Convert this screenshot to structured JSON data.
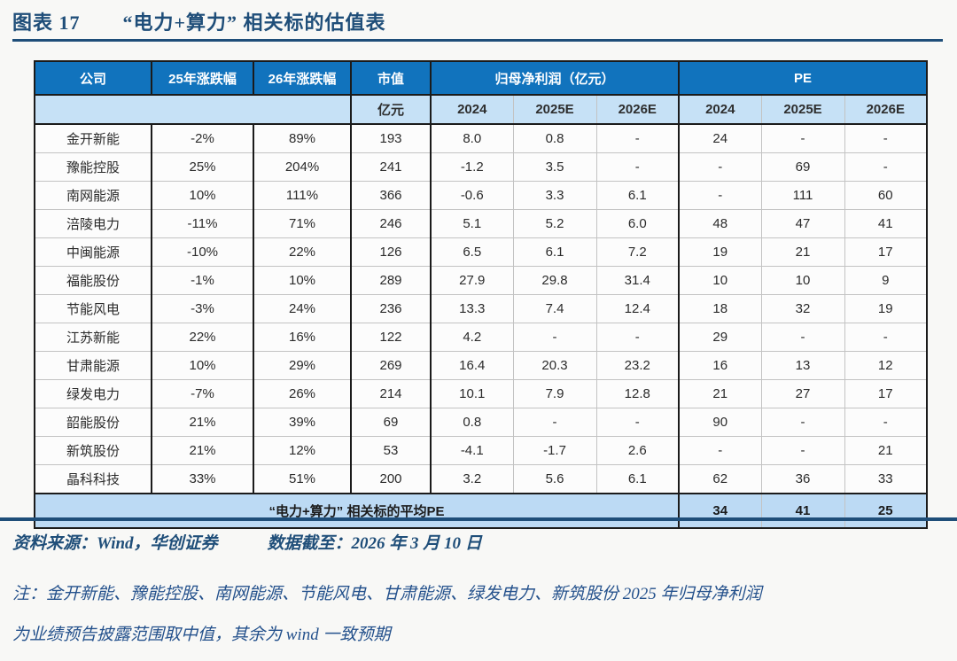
{
  "figure": {
    "label": "图表 17",
    "title": "“电力+算力” 相关标的估值表"
  },
  "table": {
    "columns_row1": [
      "公司",
      "25年涨跌幅",
      "26年涨跌幅",
      "市值",
      "归母净利润（亿元）",
      "PE"
    ],
    "columns_row2": [
      "亿元",
      "2024",
      "2025E",
      "2026E",
      "2024",
      "2025E",
      "2026E"
    ],
    "rows": [
      [
        "金开新能",
        "-2%",
        "89%",
        "193",
        "8.0",
        "0.8",
        "-",
        "24",
        "-",
        "-"
      ],
      [
        "豫能控股",
        "25%",
        "204%",
        "241",
        "-1.2",
        "3.5",
        "-",
        "-",
        "69",
        "-"
      ],
      [
        "南网能源",
        "10%",
        "111%",
        "366",
        "-0.6",
        "3.3",
        "6.1",
        "-",
        "111",
        "60"
      ],
      [
        "涪陵电力",
        "-11%",
        "71%",
        "246",
        "5.1",
        "5.2",
        "6.0",
        "48",
        "47",
        "41"
      ],
      [
        "中闽能源",
        "-10%",
        "22%",
        "126",
        "6.5",
        "6.1",
        "7.2",
        "19",
        "21",
        "17"
      ],
      [
        "福能股份",
        "-1%",
        "10%",
        "289",
        "27.9",
        "29.8",
        "31.4",
        "10",
        "10",
        "9"
      ],
      [
        "节能风电",
        "-3%",
        "24%",
        "236",
        "13.3",
        "7.4",
        "12.4",
        "18",
        "32",
        "19"
      ],
      [
        "江苏新能",
        "22%",
        "16%",
        "122",
        "4.2",
        "-",
        "-",
        "29",
        "-",
        "-"
      ],
      [
        "甘肃能源",
        "10%",
        "29%",
        "269",
        "16.4",
        "20.3",
        "23.2",
        "16",
        "13",
        "12"
      ],
      [
        "绿发电力",
        "-7%",
        "26%",
        "214",
        "10.1",
        "7.9",
        "12.8",
        "21",
        "27",
        "17"
      ],
      [
        "韶能股份",
        "21%",
        "39%",
        "69",
        "0.8",
        "-",
        "-",
        "90",
        "-",
        "-"
      ],
      [
        "新筑股份",
        "21%",
        "12%",
        "53",
        "-4.1",
        "-1.7",
        "2.6",
        "-",
        "-",
        "21"
      ],
      [
        "晶科科技",
        "33%",
        "51%",
        "200",
        "3.2",
        "5.6",
        "6.1",
        "62",
        "36",
        "33"
      ]
    ],
    "footer_label": "“电力+算力” 相关标的平均PE",
    "footer_values": [
      "34",
      "41",
      "25"
    ]
  },
  "source": "资料来源：Wind，华创证券",
  "data_cutoff": "数据截至：2026 年 3 月 10 日",
  "note_line1": "注：金开新能、豫能控股、南网能源、节能风电、甘肃能源、绿发电力、新筑股份 2025 年归母净利润",
  "note_line2": "为业绩预告披露范围取中值，其余为 wind 一致预期",
  "colors": {
    "header_blue": "#1173bd",
    "subheader_blue": "#c6e1f6",
    "footer_blue": "#bcdaf4",
    "navy": "#1f4e79",
    "dark_border": "#1b1b1b",
    "light_border": "#c3c3c3"
  }
}
